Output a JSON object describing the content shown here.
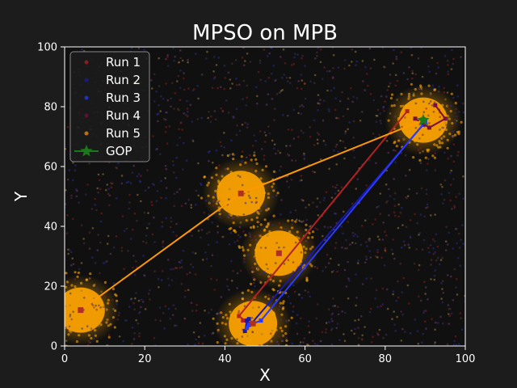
{
  "chart_data": {
    "type": "scatter",
    "title": "MPSO on MPB",
    "xlabel": "X",
    "ylabel": "Y",
    "xlim": [
      0,
      100
    ],
    "ylim": [
      0,
      100
    ],
    "xticks": [
      "0",
      "20",
      "40",
      "60",
      "80",
      "100"
    ],
    "yticks": [
      "0",
      "20",
      "40",
      "60",
      "80",
      "100"
    ],
    "grid": false,
    "legend_position": "top-left",
    "peaks": [
      {
        "x": 4,
        "y": 12
      },
      {
        "x": 44,
        "y": 51
      },
      {
        "x": 53.5,
        "y": 31
      },
      {
        "x": 47,
        "y": 7.5
      },
      {
        "x": 89.5,
        "y": 75.5
      }
    ],
    "series": [
      {
        "name": "Run 1",
        "color": "#b22222",
        "path": [
          [
            85.5,
            78.5
          ],
          [
            43.5,
            10
          ],
          [
            46,
            7.5
          ],
          [
            44.5,
            8.5
          ]
        ]
      },
      {
        "name": "Run 2",
        "color": "#1a1aaa",
        "path": [
          [
            89.5,
            74
          ],
          [
            45,
            5
          ],
          [
            45.5,
            8.5
          ],
          [
            46,
            9
          ]
        ]
      },
      {
        "name": "Run 3",
        "color": "#2a3aff",
        "path": [
          [
            90,
            75
          ],
          [
            49,
            8.5
          ],
          [
            46,
            7
          ],
          [
            45.5,
            6
          ]
        ]
      },
      {
        "name": "Run 4",
        "color": "#7a1040",
        "path": [
          [
            92.5,
            80.5
          ],
          [
            95,
            76
          ],
          [
            91,
            73
          ],
          [
            87.5,
            76
          ]
        ]
      },
      {
        "name": "Run 5",
        "color": "#ff9900",
        "path": [
          [
            4,
            12
          ],
          [
            44,
            51
          ],
          [
            89.5,
            75.5
          ]
        ]
      }
    ],
    "gop": {
      "name": "GOP",
      "color": "#1a7a1a",
      "x": 89.5,
      "y": 75.5
    }
  },
  "colors": {
    "background": "#1c1c1c",
    "axes_face": "#101010",
    "text": "#ffffff",
    "peak_marker": "#b03020",
    "cloud": "#ffa500"
  }
}
